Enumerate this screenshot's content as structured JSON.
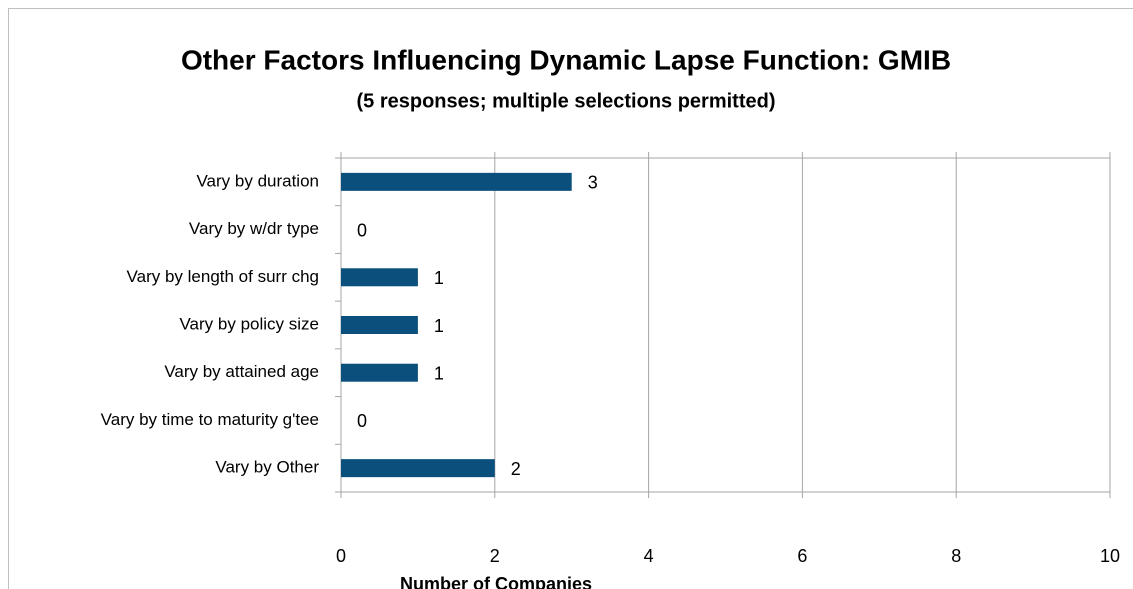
{
  "chart_data": {
    "type": "bar",
    "orientation": "horizontal",
    "title": "Other Factors Influencing Dynamic Lapse Function:  GMIB",
    "subtitle": "(5 responses; multiple selections permitted)",
    "x_label": "Number of Companies",
    "categories": [
      "Vary by duration",
      "Vary by w/dr type",
      "Vary by length of surr chg",
      "Vary by policy size",
      "Vary by attained age",
      "Vary by time to maturity g'tee",
      "Vary by Other"
    ],
    "values": [
      3,
      0,
      1,
      1,
      1,
      0,
      2
    ],
    "color": "#0b4f7c",
    "xlim": [
      0,
      10
    ],
    "xticks": [
      0,
      2,
      4,
      6,
      8,
      10
    ],
    "grid": true
  }
}
